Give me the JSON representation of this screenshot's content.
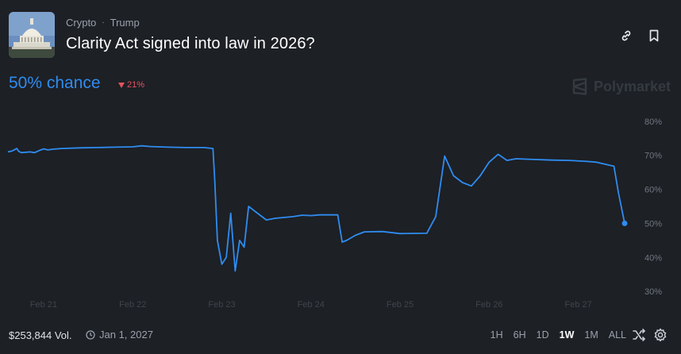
{
  "header": {
    "breadcrumbs": [
      "Crypto",
      "Trump"
    ],
    "separator": "·",
    "title": "Clarity Act signed into law in 2026?",
    "link_icon": "link-icon",
    "bookmark_icon": "bookmark-icon"
  },
  "summary": {
    "chance_text": "50% chance",
    "change_text": "21%",
    "change_direction": "down",
    "brand": "Polymarket"
  },
  "colors": {
    "accent": "#2f8cf0",
    "negative": "#e3535f",
    "background": "#1d2025"
  },
  "chart_data": {
    "type": "line",
    "x_tick_labels": [
      "Feb 21",
      "Feb 22",
      "Feb 23",
      "Feb 24",
      "Feb 25",
      "Feb 26",
      "Feb 27"
    ],
    "y_tick_labels": [
      "80%",
      "70%",
      "60%",
      "50%",
      "40%",
      "30%"
    ],
    "y_ticks": [
      80,
      70,
      60,
      50,
      40,
      30
    ],
    "ylim": [
      27,
      83
    ],
    "xlim": [
      20.6,
      27.6
    ],
    "grid": false,
    "series": [
      {
        "values_x": [
          20.6,
          20.65,
          20.7,
          20.72,
          20.75,
          20.85,
          20.9,
          20.95,
          21.0,
          21.05,
          21.1,
          21.2,
          21.4,
          21.6,
          21.8,
          22.0,
          22.1,
          22.2,
          22.4,
          22.6,
          22.8,
          22.9,
          22.92,
          22.95,
          23.0,
          23.05,
          23.1,
          23.15,
          23.2,
          23.25,
          23.3,
          23.35,
          23.4,
          23.45,
          23.5,
          23.6,
          23.8,
          23.9,
          24.0,
          24.1,
          24.3,
          24.35,
          24.4,
          24.5,
          24.6,
          24.8,
          25.0,
          25.3,
          25.4,
          25.5,
          25.6,
          25.7,
          25.8,
          25.9,
          26.0,
          26.1,
          26.2,
          26.3,
          26.5,
          26.7,
          26.9,
          27.1,
          27.2,
          27.3,
          27.4,
          27.45,
          27.52
        ],
        "values_y": [
          71,
          71.3,
          72,
          71.2,
          70.8,
          71,
          70.8,
          71.4,
          71.9,
          71.6,
          71.8,
          72,
          72.2,
          72.3,
          72.4,
          72.5,
          72.8,
          72.6,
          72.4,
          72.3,
          72.3,
          72,
          63,
          45,
          38,
          40,
          53,
          36,
          45,
          43,
          55,
          54,
          53,
          52,
          51,
          51.5,
          52,
          52.4,
          52.3,
          52.5,
          52.5,
          44.5,
          45,
          46.5,
          47.5,
          47.6,
          47,
          47.1,
          52,
          69.8,
          64,
          62,
          61,
          64,
          68,
          70.3,
          68.5,
          69,
          68.8,
          68.6,
          68.5,
          68.2,
          68,
          67.4,
          66.8,
          59,
          50
        ]
      }
    ]
  },
  "footer": {
    "volume": "$253,844 Vol.",
    "end_date": "Jan 1, 2027",
    "ranges": [
      "1H",
      "6H",
      "1D",
      "1W",
      "1M",
      "ALL"
    ],
    "active_range": "1W",
    "shuffle_icon": "shuffle-icon",
    "settings_icon": "gear-icon"
  }
}
